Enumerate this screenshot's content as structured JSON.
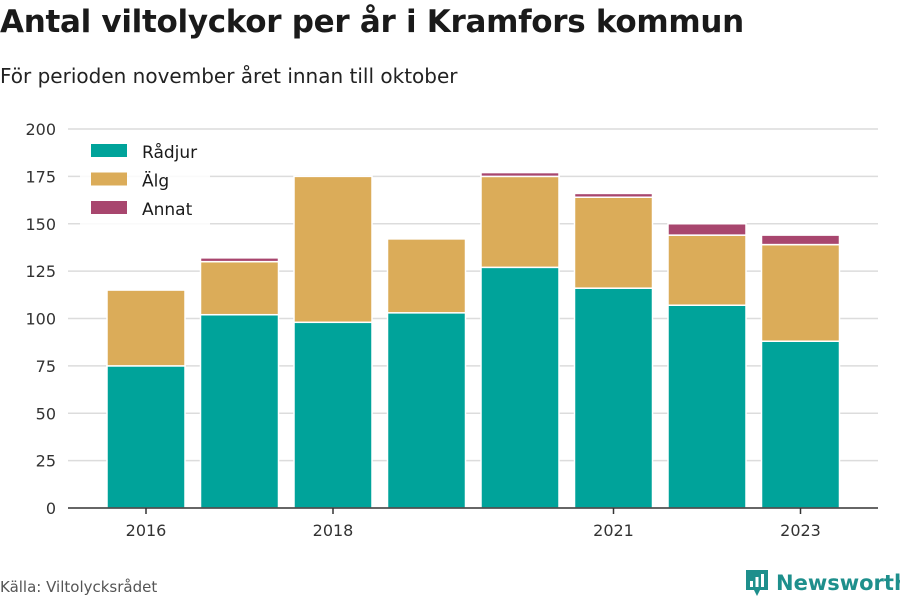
{
  "title": "Antal viltolyckor per år i Kramfors kommun",
  "subtitle": "För perioden november året innan till oktober",
  "source": "Källa: Viltolycksrådet",
  "brand": "Newsworthy",
  "chart_data": {
    "type": "bar",
    "stacked": true,
    "categories": [
      "2016",
      "2017",
      "2018",
      "2019",
      "2020",
      "2021",
      "2022",
      "2023"
    ],
    "x_tick_labels": [
      "2016",
      "",
      "2018",
      "",
      "",
      "2021",
      "",
      "2023"
    ],
    "series": [
      {
        "name": "Rådjur",
        "color": "#00a39a",
        "values": [
          75,
          102,
          98,
          103,
          127,
          116,
          107,
          88
        ]
      },
      {
        "name": "Älg",
        "color": "#dbac59",
        "values": [
          40,
          28,
          77,
          39,
          48,
          48,
          37,
          51
        ]
      },
      {
        "name": "Annat",
        "color": "#a8466e",
        "values": [
          0,
          2,
          0,
          0,
          2,
          2,
          6,
          5
        ]
      }
    ],
    "ylim": [
      0,
      200
    ],
    "yticks": [
      0,
      25,
      50,
      75,
      100,
      125,
      150,
      175,
      200
    ],
    "grid": true,
    "legend_position": "top-left"
  }
}
